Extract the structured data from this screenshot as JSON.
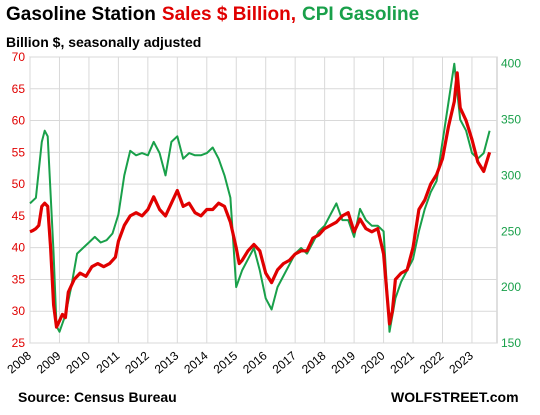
{
  "title": {
    "part1": "Gasoline Station",
    "part2": "Sales $ Billion,",
    "part3": "CPI Gasoline"
  },
  "subtitle": "Billion $, seasonally adjusted",
  "source": "Source: Census Bureau",
  "watermark": "WOLFSTREET.com",
  "colors": {
    "sales": "#e00000",
    "cpi": "#19a04a",
    "grid": "#d9d9d9"
  },
  "chart_data": {
    "type": "line",
    "x_ticks": [
      "2008",
      "2009",
      "2010",
      "2011",
      "2012",
      "2013",
      "2014",
      "2015",
      "2016",
      "2017",
      "2018",
      "2019",
      "2020",
      "2021",
      "2022",
      "2023"
    ],
    "y_left": {
      "ticks": [
        25,
        30,
        35,
        40,
        45,
        50,
        55,
        60,
        65,
        70
      ],
      "range": [
        25,
        70
      ]
    },
    "y_right": {
      "ticks": [
        150,
        200,
        250,
        300,
        350,
        400
      ],
      "range": [
        150,
        406
      ]
    },
    "grid": true,
    "series": [
      {
        "axis": "left",
        "x": [
          2008.0,
          2008.1,
          2008.2,
          2008.3,
          2008.4,
          2008.5,
          2008.6,
          2008.7,
          2008.8,
          2008.9,
          2009.0,
          2009.1,
          2009.2,
          2009.3,
          2009.5,
          2009.7,
          2009.9,
          2010.1,
          2010.3,
          2010.5,
          2010.7,
          2010.9,
          2011.0,
          2011.2,
          2011.4,
          2011.6,
          2011.8,
          2012.0,
          2012.2,
          2012.4,
          2012.6,
          2012.8,
          2013.0,
          2013.2,
          2013.4,
          2013.6,
          2013.8,
          2014.0,
          2014.2,
          2014.4,
          2014.6,
          2014.8,
          2015.0,
          2015.1,
          2015.2,
          2015.4,
          2015.6,
          2015.8,
          2016.0,
          2016.2,
          2016.4,
          2016.6,
          2016.8,
          2017.0,
          2017.2,
          2017.4,
          2017.6,
          2017.8,
          2018.0,
          2018.2,
          2018.4,
          2018.6,
          2018.8,
          2019.0,
          2019.2,
          2019.4,
          2019.6,
          2019.8,
          2020.0,
          2020.2,
          2020.3,
          2020.4,
          2020.6,
          2020.8,
          2021.0,
          2021.2,
          2021.4,
          2021.6,
          2021.8,
          2022.0,
          2022.2,
          2022.4,
          2022.5,
          2022.6,
          2022.8,
          2023.0,
          2023.2,
          2023.4,
          2023.6
        ],
        "y": [
          42.5,
          42.7,
          43.0,
          43.5,
          46.5,
          47.0,
          46.5,
          40.0,
          31.0,
          27.5,
          28.5,
          29.5,
          29.0,
          33.0,
          35.0,
          36.0,
          35.5,
          37.0,
          37.5,
          37.0,
          37.5,
          38.5,
          41.0,
          43.5,
          45.0,
          45.5,
          45.0,
          46.0,
          48.0,
          46.0,
          45.0,
          47.0,
          49.0,
          46.5,
          47.0,
          45.5,
          45.0,
          46.0,
          46.0,
          47.0,
          46.5,
          44.0,
          40.0,
          37.5,
          38.0,
          39.5,
          40.5,
          39.5,
          36.0,
          34.5,
          36.5,
          37.5,
          38.0,
          39.0,
          39.5,
          39.5,
          41.5,
          42.0,
          43.0,
          43.5,
          44.0,
          45.0,
          45.5,
          42.5,
          44.5,
          43.0,
          42.5,
          43.0,
          39.0,
          28.0,
          30.0,
          35.0,
          36.0,
          36.5,
          40.0,
          46.0,
          47.5,
          50.0,
          51.5,
          54.0,
          59.0,
          63.0,
          67.5,
          62.0,
          60.0,
          57.0,
          53.5,
          52.0,
          55.0
        ]
      },
      {
        "axis": "right",
        "x": [
          2008.0,
          2008.2,
          2008.4,
          2008.5,
          2008.6,
          2008.8,
          2008.9,
          2009.0,
          2009.2,
          2009.4,
          2009.6,
          2009.8,
          2010.0,
          2010.2,
          2010.4,
          2010.6,
          2010.8,
          2011.0,
          2011.2,
          2011.4,
          2011.6,
          2011.8,
          2012.0,
          2012.2,
          2012.4,
          2012.6,
          2012.8,
          2013.0,
          2013.2,
          2013.4,
          2013.6,
          2013.8,
          2014.0,
          2014.2,
          2014.4,
          2014.6,
          2014.8,
          2015.0,
          2015.2,
          2015.4,
          2015.6,
          2015.8,
          2016.0,
          2016.2,
          2016.4,
          2016.6,
          2016.8,
          2017.0,
          2017.2,
          2017.4,
          2017.6,
          2017.8,
          2018.0,
          2018.2,
          2018.4,
          2018.6,
          2018.8,
          2019.0,
          2019.2,
          2019.4,
          2019.6,
          2019.8,
          2020.0,
          2020.2,
          2020.4,
          2020.6,
          2020.8,
          2021.0,
          2021.2,
          2021.4,
          2021.6,
          2021.8,
          2022.0,
          2022.2,
          2022.4,
          2022.5,
          2022.6,
          2022.8,
          2023.0,
          2023.2,
          2023.4,
          2023.6
        ],
        "y": [
          275,
          280,
          330,
          340,
          335,
          230,
          165,
          160,
          175,
          200,
          230,
          235,
          240,
          245,
          240,
          242,
          248,
          265,
          300,
          322,
          318,
          320,
          318,
          330,
          320,
          300,
          330,
          335,
          315,
          320,
          318,
          318,
          320,
          325,
          315,
          300,
          280,
          200,
          215,
          225,
          235,
          215,
          190,
          180,
          200,
          210,
          220,
          230,
          235,
          230,
          240,
          250,
          255,
          265,
          275,
          260,
          260,
          245,
          270,
          260,
          255,
          255,
          250,
          160,
          190,
          205,
          215,
          225,
          250,
          270,
          285,
          295,
          330,
          365,
          400,
          375,
          350,
          340,
          320,
          315,
          320,
          340
        ]
      }
    ]
  }
}
